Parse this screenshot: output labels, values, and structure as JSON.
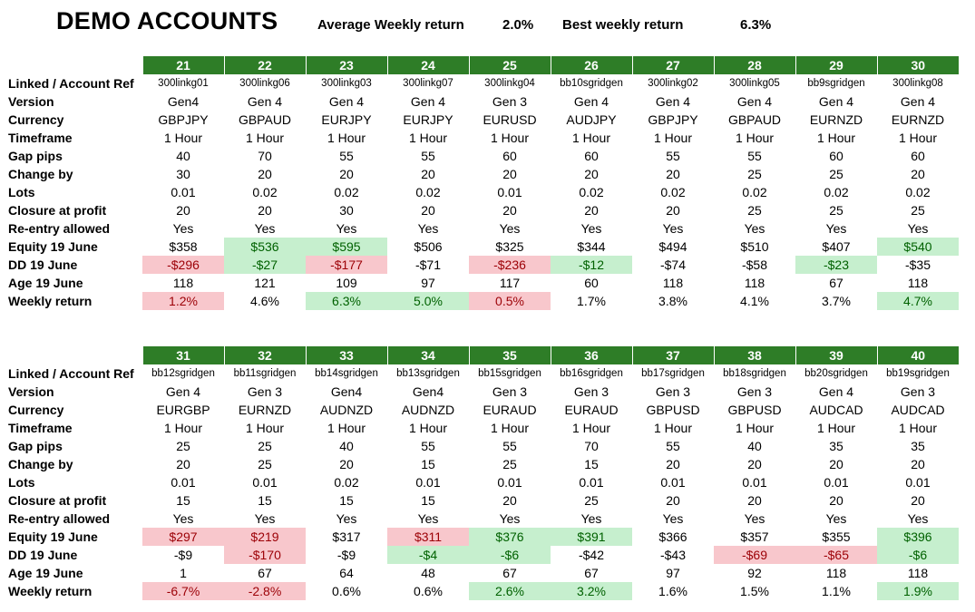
{
  "header": {
    "title": "DEMO ACCOUNTS",
    "avg_label": "Average Weekly return",
    "avg_value": "2.0%",
    "best_label": "Best weekly return",
    "best_value": "6.3%"
  },
  "row_labels": [
    "Linked /  Account Ref",
    "Version",
    "Currency",
    "Timeframe",
    "Gap pips",
    "Change by",
    "Lots",
    "Closure at profit",
    "Re-entry allowed",
    "Equity 19 June",
    "DD 19 June",
    "Age 19 June",
    "Weekly return"
  ],
  "colors": {
    "header_green": "#2e7d27",
    "neg_fill": "#f8c7cc",
    "neg_text": "#9c0006",
    "pos_fill": "#c6efce",
    "pos_text": "#006100"
  },
  "tables": [
    {
      "numbers": [
        "21",
        "22",
        "23",
        "24",
        "25",
        "26",
        "27",
        "28",
        "29",
        "30"
      ],
      "rows": [
        [
          "300linkg01",
          "300linkg06",
          "300linkg03",
          "300linkg07",
          "300linkg04",
          "bb10sgridgen",
          "300linkg02",
          "300linkg05",
          "bb9sgridgen",
          "300linkg08"
        ],
        [
          "Gen4",
          "Gen 4",
          "Gen 4",
          "Gen 4",
          "Gen 3",
          "Gen 4",
          "Gen 4",
          "Gen 4",
          "Gen 4",
          "Gen 4"
        ],
        [
          "GBPJPY",
          "GBPAUD",
          "EURJPY",
          "EURJPY",
          "EURUSD",
          "AUDJPY",
          "GBPJPY",
          "GBPAUD",
          "EURNZD",
          "EURNZD"
        ],
        [
          "1 Hour",
          "1 Hour",
          "1 Hour",
          "1 Hour",
          "1 Hour",
          "1 Hour",
          "1 Hour",
          "1 Hour",
          "1 Hour",
          "1 Hour"
        ],
        [
          "40",
          "70",
          "55",
          "55",
          "60",
          "60",
          "55",
          "55",
          "60",
          "60"
        ],
        [
          "30",
          "20",
          "20",
          "20",
          "20",
          "20",
          "20",
          "25",
          "25",
          "20"
        ],
        [
          "0.01",
          "0.02",
          "0.02",
          "0.02",
          "0.01",
          "0.02",
          "0.02",
          "0.02",
          "0.02",
          "0.02"
        ],
        [
          "20",
          "20",
          "30",
          "20",
          "20",
          "20",
          "20",
          "25",
          "25",
          "25"
        ],
        [
          "Yes",
          "Yes",
          "Yes",
          "Yes",
          "Yes",
          "Yes",
          "Yes",
          "Yes",
          "Yes",
          "Yes"
        ],
        [
          "$358",
          "$536",
          "$595",
          "$506",
          "$325",
          "$344",
          "$494",
          "$510",
          "$407",
          "$540"
        ],
        [
          "-$296",
          "-$27",
          "-$177",
          "-$71",
          "-$236",
          "-$12",
          "-$74",
          "-$58",
          "-$23",
          "-$35"
        ],
        [
          "118",
          "121",
          "109",
          "97",
          "117",
          "60",
          "118",
          "118",
          "67",
          "118"
        ],
        [
          "1.2%",
          "4.6%",
          "6.3%",
          "5.0%",
          "0.5%",
          "1.7%",
          "3.8%",
          "4.1%",
          "3.7%",
          "4.7%"
        ]
      ],
      "highlights": [
        [],
        [],
        [],
        [],
        [],
        [],
        [],
        [],
        [],
        [
          "",
          "green",
          "green",
          "",
          "",
          "",
          "",
          "",
          "",
          "green"
        ],
        [
          "red",
          "green",
          "red",
          "",
          "red",
          "green",
          "",
          "",
          "green",
          ""
        ],
        [],
        [
          "red",
          "",
          "green",
          "green",
          "red",
          "",
          "",
          "",
          "",
          "green"
        ]
      ]
    },
    {
      "numbers": [
        "31",
        "32",
        "33",
        "34",
        "35",
        "36",
        "37",
        "38",
        "39",
        "40"
      ],
      "rows": [
        [
          "bb12sgridgen",
          "bb11sgridgen",
          "bb14sgridgen",
          "bb13sgridgen",
          "bb15sgridgen",
          "bb16sgridgen",
          "bb17sgridgen",
          "bb18sgridgen",
          "bb20sgridgen",
          "bb19sgridgen"
        ],
        [
          "Gen 4",
          "Gen 3",
          "Gen4",
          "Gen4",
          "Gen 3",
          "Gen  3",
          "Gen 3",
          "Gen 3",
          "Gen 4",
          "Gen 3"
        ],
        [
          "EURGBP",
          "EURNZD",
          "AUDNZD",
          "AUDNZD",
          "EURAUD",
          "EURAUD",
          "GBPUSD",
          "GBPUSD",
          "AUDCAD",
          "AUDCAD"
        ],
        [
          "1 Hour",
          "1 Hour",
          "1 Hour",
          "1 Hour",
          "1 Hour",
          "1 Hour",
          "1 Hour",
          "1 Hour",
          "1 Hour",
          "1 Hour"
        ],
        [
          "25",
          "25",
          "40",
          "55",
          "55",
          "70",
          "55",
          "40",
          "35",
          "35"
        ],
        [
          "20",
          "25",
          "20",
          "15",
          "25",
          "15",
          "20",
          "20",
          "20",
          "20"
        ],
        [
          "0.01",
          "0.01",
          "0.02",
          "0.01",
          "0.01",
          "0.01",
          "0.01",
          "0.01",
          "0.01",
          "0.01"
        ],
        [
          "15",
          "15",
          "15",
          "15",
          "20",
          "25",
          "20",
          "20",
          "20",
          "20"
        ],
        [
          "Yes",
          "Yes",
          "Yes",
          "Yes",
          "Yes",
          "Yes",
          "Yes",
          "Yes",
          "Yes",
          "Yes"
        ],
        [
          "$297",
          "$219",
          "$317",
          "$311",
          "$376",
          "$391",
          "$366",
          "$357",
          "$355",
          "$396"
        ],
        [
          "-$9",
          "-$170",
          "-$9",
          "-$4",
          "-$6",
          "-$42",
          "-$43",
          "-$69",
          "-$65",
          "-$6"
        ],
        [
          "1",
          "67",
          "64",
          "48",
          "67",
          "67",
          "97",
          "92",
          "118",
          "118"
        ],
        [
          "-6.7%",
          "-2.8%",
          "0.6%",
          "0.6%",
          "2.6%",
          "3.2%",
          "1.6%",
          "1.5%",
          "1.1%",
          "1.9%"
        ]
      ],
      "highlights": [
        [],
        [],
        [],
        [],
        [],
        [],
        [],
        [],
        [],
        [
          "red",
          "red",
          "",
          "red",
          "green",
          "green",
          "",
          "",
          "",
          "green"
        ],
        [
          "",
          "red",
          "",
          "green",
          "green",
          "",
          "",
          "red",
          "red",
          "green"
        ],
        [],
        [
          "red",
          "red",
          "",
          "",
          "green",
          "green",
          "",
          "",
          "",
          "green"
        ]
      ]
    }
  ]
}
